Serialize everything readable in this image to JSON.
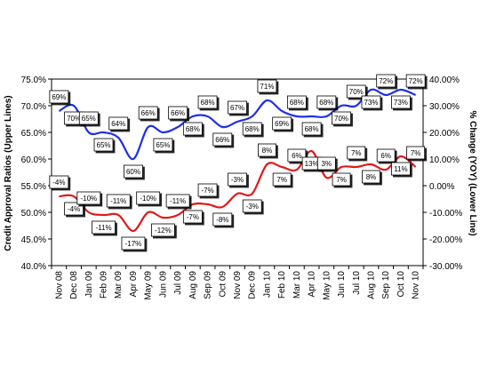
{
  "chart_data": {
    "type": "line",
    "title": "",
    "categories": [
      "Nov 08",
      "Dec 08",
      "Jan 09",
      "Feb 09",
      "Mar 09",
      "Apr 09",
      "May 09",
      "Jun 09",
      "Jul 09",
      "Aug 09",
      "Sep 09",
      "Oct 09",
      "Nov 09",
      "Dec 09",
      "Jan 10",
      "Feb 10",
      "Mar 10",
      "Apr 10",
      "May 10",
      "Jun 10",
      "Jul 10",
      "Aug 10",
      "Sep 10",
      "Oct 10",
      "Nov 10"
    ],
    "y_left": {
      "label": "Credit Approval Ratios (Upper Lines)",
      "ylim": [
        40,
        75
      ],
      "ticks": [
        "40.0%",
        "45.0%",
        "50.0%",
        "55.0%",
        "60.0%",
        "65.0%",
        "70.0%",
        "75.0%"
      ]
    },
    "y_right": {
      "label": "% Change (YOY) (Lower Line)",
      "ylim": [
        -30,
        40
      ],
      "ticks": [
        "-30.00%",
        "-20.00%",
        "-10.00%",
        "0.00%",
        "10.00%",
        "20.00%",
        "30.00%",
        "40.00%"
      ]
    },
    "series": [
      {
        "axis": "left",
        "color": "#1f2fe6",
        "values": [
          69,
          70,
          65,
          65,
          64,
          60,
          66,
          65,
          66,
          68,
          68,
          66,
          67,
          68,
          71,
          69,
          68,
          68,
          68,
          70,
          70,
          73,
          72,
          73,
          72
        ],
        "labels": [
          "69%",
          "70%",
          "65%",
          "65%",
          "64%",
          "60%",
          "66%",
          "65%",
          "66%",
          "68%",
          "68%",
          "66%",
          "67%",
          "68%",
          "71%",
          "69%",
          "68%",
          "68%",
          "68%",
          "70%",
          "70%",
          "73%",
          "72%",
          "73%",
          "72%"
        ]
      },
      {
        "axis": "right",
        "color": "#e01a1a",
        "values": [
          -4,
          -4,
          -10,
          -11,
          -11,
          -17,
          -10,
          -12,
          -11,
          -7,
          -7,
          -8,
          -3,
          -3,
          8,
          7,
          6,
          13,
          3,
          7,
          7,
          8,
          6,
          11,
          7
        ],
        "labels": [
          "-4%",
          "-4%",
          "-10%",
          "-11%",
          "-11%",
          "-17%",
          "-10%",
          "-12%",
          "-11%",
          "-7%",
          "-7%",
          "-8%",
          "-3%",
          "-3%",
          "8%",
          "7%",
          "6%",
          "13%",
          "3%",
          "7%",
          "7%",
          "8%",
          "6%",
          "11%",
          "7%"
        ]
      }
    ],
    "grid": false,
    "legend": "none"
  }
}
